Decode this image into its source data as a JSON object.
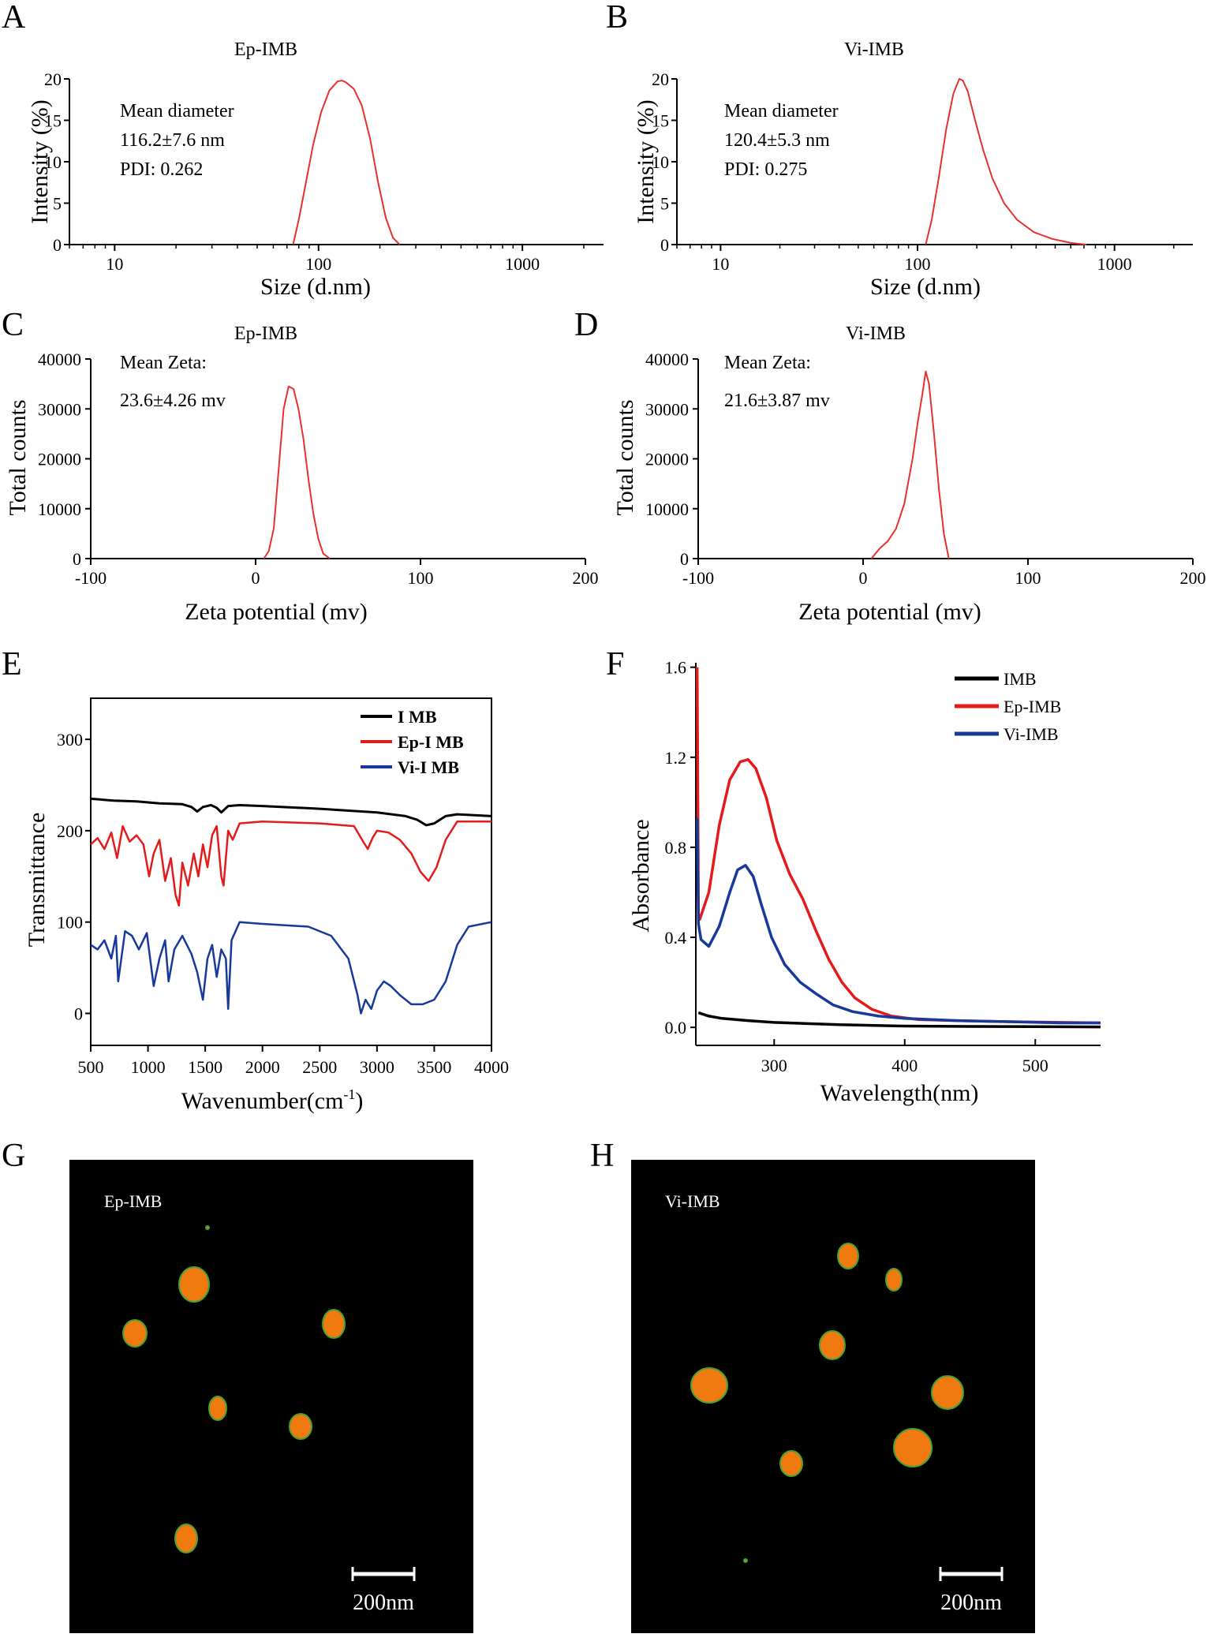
{
  "figure": {
    "panel_letters": [
      "A",
      "B",
      "C",
      "D",
      "E",
      "F",
      "G",
      "H"
    ]
  },
  "colors": {
    "dls_line": "#e8302f",
    "imb": "#000000",
    "ep_imb": "#e51a1a",
    "vi_imb": "#16399a",
    "tem_background": "#000000",
    "particle": "#f07a10",
    "particle_edge": "#3fa33a"
  },
  "chart_data": [
    {
      "panel": "A",
      "type": "line",
      "title": "Ep-IMB",
      "xlabel": "Size (d.nm)",
      "ylabel": "Intensity (%)",
      "xscale": "log",
      "xlim": [
        6,
        2500
      ],
      "ylim": [
        0,
        20
      ],
      "xticks": [
        10,
        100,
        1000
      ],
      "xtick_labels": [
        "10",
        "100",
        "1000"
      ],
      "yticks": [
        0,
        5,
        10,
        15,
        20
      ],
      "ytick_labels": [
        "0",
        "5",
        "10",
        "15",
        "20"
      ],
      "annotations": [
        "Mean diameter",
        "116.2±7.6 nm",
        "PDI: 0.262"
      ],
      "series": [
        {
          "name": "Ep-IMB",
          "x": [
            75,
            80,
            86,
            94,
            103,
            113,
            124,
            130,
            136,
            149,
            163,
            179,
            196,
            214,
            232,
            250
          ],
          "y": [
            0,
            3,
            7,
            12,
            16,
            18.6,
            19.7,
            19.8,
            19.6,
            18.8,
            16.8,
            12.8,
            7.5,
            3.2,
            0.8,
            0
          ]
        }
      ]
    },
    {
      "panel": "B",
      "type": "line",
      "title": "Vi-IMB",
      "xlabel": "Size (d.nm)",
      "ylabel": "Intensity (%)",
      "xscale": "log",
      "xlim": [
        6,
        2500
      ],
      "ylim": [
        0,
        20
      ],
      "xticks": [
        10,
        100,
        1000
      ],
      "xtick_labels": [
        "10",
        "100",
        "1000"
      ],
      "yticks": [
        0,
        5,
        10,
        15,
        20
      ],
      "ytick_labels": [
        "0",
        "5",
        "10",
        "15",
        "20"
      ],
      "annotations": [
        "Mean diameter",
        "120.4±5.3 nm",
        "PDI: 0.275"
      ],
      "series": [
        {
          "name": "Vi-IMB",
          "x": [
            110,
            118,
            128,
            140,
            152,
            163,
            170,
            180,
            196,
            215,
            240,
            275,
            320,
            390,
            480,
            600,
            720
          ],
          "y": [
            0,
            3,
            8,
            14,
            18.2,
            20,
            19.8,
            18.5,
            15,
            11.5,
            8,
            5,
            3,
            1.5,
            0.7,
            0.2,
            0
          ]
        }
      ]
    },
    {
      "panel": "C",
      "type": "line",
      "title": "Ep-IMB",
      "xlabel": "Zeta potential  (mv)",
      "ylabel": "Total counts",
      "xlim": [
        -100,
        200
      ],
      "ylim": [
        0,
        40000
      ],
      "xticks": [
        -100,
        0,
        100,
        200
      ],
      "xtick_labels": [
        "-100",
        "0",
        "100",
        "200"
      ],
      "yticks": [
        0,
        10000,
        20000,
        30000,
        40000
      ],
      "ytick_labels": [
        "0",
        "10000",
        "20000",
        "30000",
        "40000"
      ],
      "annotations": [
        "Mean Zeta:",
        "23.6±4.26 mv"
      ],
      "series": [
        {
          "name": "Ep-IMB",
          "x": [
            5,
            8,
            11,
            14,
            17,
            20,
            23,
            26,
            29,
            32,
            35,
            38,
            41,
            45
          ],
          "y": [
            0,
            1500,
            6000,
            18000,
            30000,
            34500,
            34000,
            30000,
            24000,
            16000,
            9000,
            4000,
            1000,
            0
          ]
        }
      ]
    },
    {
      "panel": "D",
      "type": "line",
      "title": "Vi-IMB",
      "xlabel": "Zeta potential  (mv)",
      "ylabel": "Total counts",
      "xlim": [
        -100,
        200
      ],
      "ylim": [
        0,
        40000
      ],
      "xticks": [
        -100,
        0,
        100,
        200
      ],
      "xtick_labels": [
        "-100",
        "0",
        "100",
        "200"
      ],
      "yticks": [
        0,
        10000,
        20000,
        30000,
        40000
      ],
      "ytick_labels": [
        "0",
        "10000",
        "20000",
        "30000",
        "40000"
      ],
      "annotations": [
        "Mean Zeta:",
        "21.6±3.87 mv"
      ],
      "series": [
        {
          "name": "Vi-IMB",
          "x": [
            5,
            10,
            15,
            20,
            25,
            30,
            33,
            36,
            38,
            40,
            43,
            46,
            49,
            52
          ],
          "y": [
            0,
            2000,
            3500,
            6000,
            11000,
            20000,
            27000,
            33000,
            37500,
            35000,
            25000,
            14000,
            5000,
            0
          ]
        }
      ]
    },
    {
      "panel": "E",
      "type": "line",
      "title": "",
      "xlabel": "Wavenumber(cm",
      "xlabel_sup": "-1",
      "xlabel_close": ")",
      "ylabel": "Transmittance",
      "xlim": [
        500,
        4000
      ],
      "ylim": [
        -35,
        345
      ],
      "xticks": [
        500,
        1000,
        1500,
        2000,
        2500,
        3000,
        3500,
        4000
      ],
      "xtick_labels": [
        "500",
        "1000",
        "1500",
        "2000",
        "2500",
        "3000",
        "3500",
        "4000"
      ],
      "yticks": [
        0,
        100,
        200,
        300
      ],
      "ytick_labels": [
        "0",
        "100",
        "200",
        "300"
      ],
      "legend": [
        "I MB",
        "Ep-I MB",
        "Vi-I MB"
      ],
      "legend_position": "top-right",
      "series": [
        {
          "name": "I MB",
          "x": [
            500,
            700,
            900,
            1100,
            1300,
            1380,
            1430,
            1480,
            1550,
            1600,
            1640,
            1700,
            1800,
            2000,
            2500,
            3000,
            3250,
            3350,
            3430,
            3500,
            3600,
            3700,
            4000
          ],
          "y": [
            235,
            233,
            232,
            230,
            229,
            226,
            221,
            226,
            228,
            225,
            220,
            227,
            228,
            227,
            224,
            220,
            216,
            212,
            206,
            208,
            216,
            218,
            216
          ]
        },
        {
          "name": "Ep-I MB",
          "x": [
            500,
            560,
            620,
            680,
            730,
            780,
            840,
            900,
            960,
            1010,
            1050,
            1100,
            1150,
            1200,
            1240,
            1270,
            1300,
            1350,
            1400,
            1440,
            1480,
            1520,
            1560,
            1600,
            1640,
            1660,
            1700,
            1740,
            1800,
            2000,
            2500,
            2800,
            2870,
            2920,
            2960,
            3000,
            3100,
            3200,
            3300,
            3380,
            3450,
            3520,
            3600,
            3700,
            4000
          ],
          "y": [
            185,
            192,
            180,
            198,
            170,
            205,
            188,
            195,
            185,
            150,
            175,
            190,
            145,
            170,
            130,
            118,
            165,
            140,
            175,
            150,
            185,
            160,
            195,
            205,
            150,
            140,
            200,
            190,
            208,
            210,
            208,
            205,
            190,
            180,
            192,
            200,
            198,
            190,
            175,
            155,
            145,
            160,
            190,
            210,
            210
          ]
        },
        {
          "name": "Vi-I MB",
          "x": [
            500,
            560,
            620,
            680,
            720,
            740,
            800,
            860,
            920,
            990,
            1050,
            1100,
            1150,
            1180,
            1230,
            1300,
            1380,
            1430,
            1480,
            1520,
            1560,
            1600,
            1640,
            1680,
            1700,
            1730,
            1800,
            2000,
            2400,
            2600,
            2750,
            2830,
            2860,
            2900,
            2950,
            3000,
            3060,
            3120,
            3200,
            3300,
            3400,
            3500,
            3600,
            3700,
            3800,
            4000
          ],
          "y": [
            75,
            70,
            80,
            60,
            85,
            35,
            90,
            85,
            70,
            88,
            30,
            60,
            80,
            35,
            70,
            85,
            65,
            45,
            15,
            60,
            75,
            40,
            70,
            60,
            5,
            80,
            100,
            98,
            95,
            85,
            60,
            20,
            0,
            15,
            5,
            25,
            35,
            30,
            20,
            10,
            10,
            15,
            35,
            75,
            95,
            100
          ]
        }
      ]
    },
    {
      "panel": "F",
      "type": "line",
      "title": "",
      "xlabel": "Wavelength(nm)",
      "ylabel": "Absorbance",
      "xlim": [
        240,
        550
      ],
      "ylim": [
        -0.08,
        1.62
      ],
      "xticks": [
        300,
        400,
        500
      ],
      "xtick_labels": [
        "300",
        "400",
        "500"
      ],
      "yticks": [
        0.0,
        0.4,
        0.8,
        1.2,
        1.6
      ],
      "ytick_labels": [
        "0.0",
        "0.4",
        "0.8",
        "1.2",
        "1.6"
      ],
      "legend": [
        "IMB",
        "Ep-IMB",
        "Vi-IMB"
      ],
      "legend_position": "top-right",
      "series": [
        {
          "name": "IMB",
          "x": [
            242,
            250,
            260,
            280,
            300,
            350,
            400,
            450,
            500,
            550
          ],
          "y": [
            0.065,
            0.05,
            0.04,
            0.03,
            0.022,
            0.012,
            0.006,
            0.004,
            0.003,
            0.002
          ]
        },
        {
          "name": "Ep-IMB",
          "x": [
            241,
            242,
            243,
            250,
            258,
            266,
            274,
            280,
            286,
            294,
            302,
            312,
            322,
            332,
            342,
            352,
            362,
            375,
            390,
            410,
            440,
            480,
            520,
            550
          ],
          "y": [
            1.6,
            0.5,
            0.48,
            0.6,
            0.9,
            1.1,
            1.18,
            1.19,
            1.15,
            1.02,
            0.83,
            0.68,
            0.57,
            0.43,
            0.3,
            0.2,
            0.13,
            0.08,
            0.05,
            0.035,
            0.03,
            0.025,
            0.022,
            0.02
          ]
        },
        {
          "name": "Vi-IMB",
          "x": [
            241,
            242,
            244,
            250,
            258,
            266,
            272,
            278,
            284,
            290,
            298,
            308,
            320,
            332,
            345,
            360,
            380,
            400,
            440,
            480,
            520,
            550
          ],
          "y": [
            0.93,
            0.46,
            0.39,
            0.36,
            0.45,
            0.6,
            0.7,
            0.72,
            0.67,
            0.55,
            0.4,
            0.28,
            0.2,
            0.15,
            0.1,
            0.07,
            0.05,
            0.04,
            0.03,
            0.025,
            0.02,
            0.02
          ]
        }
      ]
    }
  ],
  "tem": [
    {
      "panel": "G",
      "label": "Ep-IMB",
      "scale_bar": "200nm",
      "particle_count": 7
    },
    {
      "panel": "H",
      "label": "Vi-IMB",
      "scale_bar": "200nm",
      "particle_count": 8
    }
  ]
}
